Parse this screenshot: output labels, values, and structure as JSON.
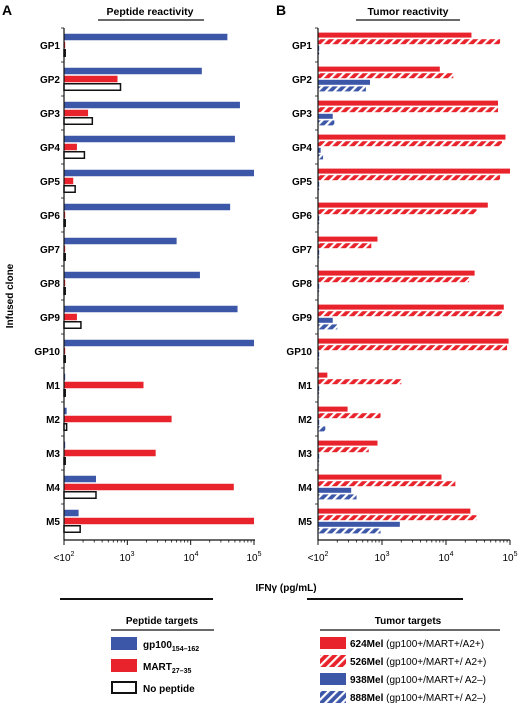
{
  "figure": {
    "panel_a_letter": "A",
    "panel_b_letter": "B",
    "y_axis_title": "Infused clone",
    "x_axis_title": "IFNγ (pg/mL)",
    "x_tick_labels": [
      "<10",
      "2",
      "10",
      "3",
      "10",
      "4",
      "10",
      "5"
    ],
    "legend_a": {
      "title": "Peptide targets",
      "items": [
        {
          "label": "gp100",
          "sub": "154–162"
        },
        {
          "label": "MART",
          "sub": "27–35"
        },
        {
          "label": "No peptide",
          "sub": ""
        }
      ]
    },
    "legend_b": {
      "title": "Tumor targets",
      "items": [
        {
          "label": "624Mel",
          "detail": " (gp100+/MART+/A2+)"
        },
        {
          "label": "526Mel",
          "detail": " (gp100+/MART+/ A2+)"
        },
        {
          "label": "938Mel",
          "detail": " (gp100+/MART+/ A2–)"
        },
        {
          "label": "888Mel",
          "detail": " (gp100+/MART+/ A2–)"
        }
      ]
    }
  },
  "colors": {
    "blue": "#3d57a8",
    "red": "#e8232c",
    "black": "#111111",
    "white": "#ffffff"
  },
  "chart_data": [
    {
      "type": "bar",
      "orientation": "horizontal",
      "title": "Peptide reactivity",
      "xlabel": "IFNγ (pg/mL)",
      "ylabel": "Infused clone",
      "x_scale": "log",
      "xlim": [
        100,
        100000
      ],
      "categories": [
        "GP1",
        "GP2",
        "GP3",
        "GP4",
        "GP5",
        "GP6",
        "GP7",
        "GP8",
        "GP9",
        "GP10",
        "M1",
        "M2",
        "M3",
        "M4",
        "M5"
      ],
      "series": [
        {
          "name": "gp100 154–162",
          "style": "solid-blue",
          "values": [
            38000,
            15000,
            60000,
            50000,
            100000,
            42000,
            6000,
            14000,
            55000,
            100000,
            100,
            110,
            100,
            320,
            170
          ]
        },
        {
          "name": "MART 27–35",
          "style": "solid-red",
          "values": [
            100,
            700,
            240,
            160,
            140,
            100,
            100,
            100,
            160,
            100,
            1800,
            5000,
            2800,
            48000,
            100000
          ]
        },
        {
          "name": "No peptide",
          "style": "open-black",
          "values": [
            100,
            780,
            280,
            210,
            150,
            100,
            100,
            100,
            185,
            100,
            100,
            110,
            100,
            320,
            180
          ]
        }
      ]
    },
    {
      "type": "bar",
      "orientation": "horizontal",
      "title": "Tumor reactivity",
      "xlabel": "IFNγ (pg/mL)",
      "x_scale": "log",
      "xlim": [
        100,
        100000
      ],
      "categories": [
        "GP1",
        "GP2",
        "GP3",
        "GP4",
        "GP5",
        "GP6",
        "GP7",
        "GP8",
        "GP9",
        "GP10",
        "M1",
        "M2",
        "M3",
        "M4",
        "M5"
      ],
      "series": [
        {
          "name": "624Mel (gp100+/MART+/A2+)",
          "style": "solid-red",
          "values": [
            25000,
            8000,
            65000,
            85000,
            100000,
            45000,
            850,
            28000,
            80000,
            95000,
            140,
            290,
            850,
            8500,
            24000
          ]
        },
        {
          "name": "526Mel (gp100+/MART+/ A2+)",
          "style": "hatched-red",
          "values": [
            70000,
            13000,
            65000,
            75000,
            70000,
            30000,
            680,
            23000,
            75000,
            90000,
            2000,
            950,
            620,
            14000,
            30000
          ]
        },
        {
          "name": "938Mel (gp100+/MART+/ A2–)",
          "style": "solid-blue",
          "values": [
            100,
            650,
            170,
            110,
            100,
            100,
            100,
            100,
            170,
            100,
            100,
            100,
            100,
            330,
            1900
          ]
        },
        {
          "name": "888Mel (gp100+/MART+/ A2–)",
          "style": "hatched-blue",
          "values": [
            100,
            560,
            180,
            120,
            100,
            100,
            100,
            100,
            200,
            100,
            100,
            130,
            100,
            400,
            950
          ]
        }
      ]
    }
  ]
}
